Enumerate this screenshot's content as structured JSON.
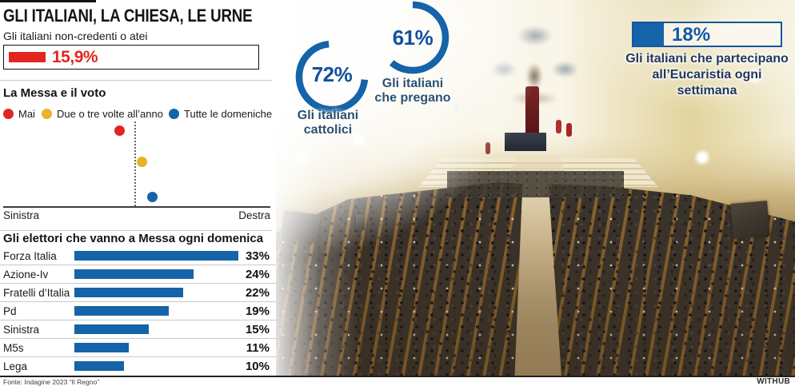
{
  "header": {
    "title": "GLI ITALIANI, LA CHIESA, LE URNE"
  },
  "colors": {
    "blue": "#1563a8",
    "red": "#e2261f",
    "yellow": "#e7b427"
  },
  "non_believers": {
    "label": "Gli italiani non-credenti o atei",
    "value_label": "15,9%",
    "pct": 15.9
  },
  "mass_vote": {
    "title": "La Messa e il voto",
    "legend": [
      {
        "label": "Mai",
        "color": "#e2261f"
      },
      {
        "label": "Due o tre volte all’anno",
        "color": "#e7b427"
      },
      {
        "label": "Tutte le domeniche",
        "color": "#1563a8"
      }
    ],
    "points": [
      {
        "label": "Mai",
        "color": "#e2261f",
        "x": -0.12
      },
      {
        "label": "Due o tre volte all’anno",
        "color": "#e7b427",
        "x": 0.05
      },
      {
        "label": "Tutte le domeniche",
        "color": "#1563a8",
        "x": 0.13
      }
    ],
    "axis_left": "Sinistra",
    "axis_right": "Destra"
  },
  "electors": {
    "title": "Gli elettori che vanno a Messa ogni domenica",
    "rows": [
      {
        "label": "Forza Italia",
        "pct": 33,
        "value_label": "33%"
      },
      {
        "label": "Azione-Iv",
        "pct": 24,
        "value_label": "24%"
      },
      {
        "label": "Fratelli d’Italia",
        "pct": 22,
        "value_label": "22%"
      },
      {
        "label": "Pd",
        "pct": 19,
        "value_label": "19%"
      },
      {
        "label": "Sinistra",
        "pct": 15,
        "value_label": "15%"
      },
      {
        "label": "M5s",
        "pct": 11,
        "value_label": "11%"
      },
      {
        "label": "Lega",
        "pct": 10,
        "value_label": "10%"
      }
    ]
  },
  "photo_overlays": {
    "catholics": {
      "pct": 72,
      "value_label": "72%",
      "label_line1": "Gli italiani",
      "label_line2": "cattolici"
    },
    "praying": {
      "pct": 61,
      "value_label": "61%",
      "label_line1": "Gli italiani",
      "label_line2": "che pregano"
    },
    "eucharist": {
      "pct": 18,
      "value_label": "18%",
      "caption_line1": "Gli italiani che partecipano",
      "caption_line2": "all’Eucaristia ogni settimana"
    }
  },
  "footer": {
    "source": "Fonte: Indagine 2023 “Il Regno”",
    "credit": "WITHUB"
  },
  "chart_data": [
    {
      "type": "bar",
      "title": "Gli italiani non-credenti o atei",
      "categories": [
        "Non-credenti o atei"
      ],
      "values": [
        15.9
      ],
      "unit": "%"
    },
    {
      "type": "scatter",
      "title": "La Messa e il voto",
      "x_axis": {
        "left_label": "Sinistra",
        "right_label": "Destra",
        "range": [
          -1,
          1
        ]
      },
      "points": [
        {
          "label": "Mai",
          "x": -0.12
        },
        {
          "label": "Due o tre volte all’anno",
          "x": 0.05
        },
        {
          "label": "Tutte le domeniche",
          "x": 0.13
        }
      ]
    },
    {
      "type": "bar",
      "title": "Gli elettori che vanno a Messa ogni domenica",
      "categories": [
        "Forza Italia",
        "Azione-Iv",
        "Fratelli d’Italia",
        "Pd",
        "Sinistra",
        "M5s",
        "Lega"
      ],
      "values": [
        33,
        24,
        22,
        19,
        15,
        11,
        10
      ],
      "unit": "%",
      "xlim": [
        0,
        33
      ]
    },
    {
      "type": "pie",
      "title": "Gli italiani cattolici",
      "categories": [
        "Cattolici"
      ],
      "values": [
        72
      ],
      "unit": "%"
    },
    {
      "type": "pie",
      "title": "Gli italiani che pregano",
      "categories": [
        "Pregano"
      ],
      "values": [
        61
      ],
      "unit": "%"
    },
    {
      "type": "bar",
      "title": "Gli italiani che partecipano all’Eucaristia ogni settimana",
      "categories": [
        "Partecipano"
      ],
      "values": [
        18
      ],
      "unit": "%"
    }
  ]
}
